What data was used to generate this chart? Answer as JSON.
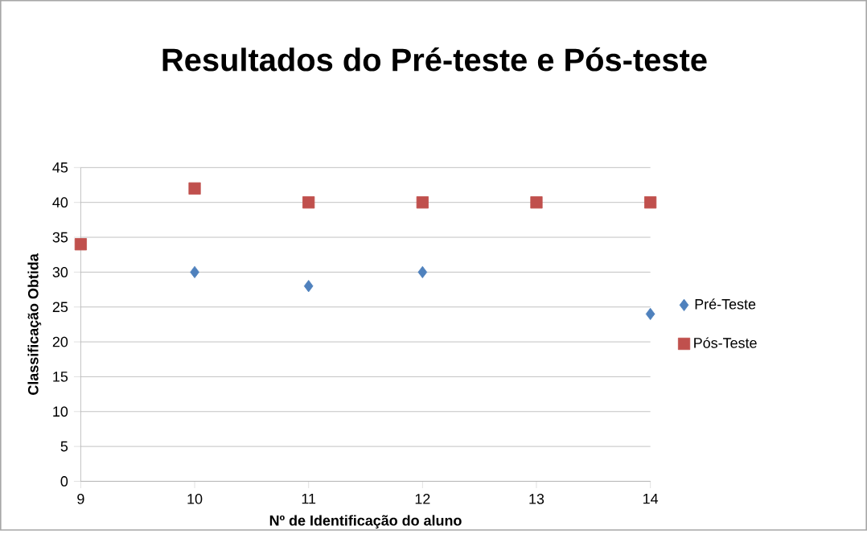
{
  "chart_data": {
    "type": "scatter",
    "title": "Resultados do Pré-teste e Pós-teste",
    "xlabel": "Nº de Identificação do aluno",
    "ylabel": "Classificação Obtida",
    "x": [
      9,
      10,
      11,
      12,
      13,
      14
    ],
    "series": [
      {
        "name": "Pré-Teste",
        "color": "#4f81bd",
        "marker": "diamond",
        "values": [
          null,
          30,
          28,
          30,
          null,
          24
        ]
      },
      {
        "name": "Pós-Teste",
        "color": "#c0504d",
        "marker": "square",
        "values": [
          34,
          42,
          40,
          40,
          40,
          40
        ]
      }
    ],
    "xlim": [
      9,
      14
    ],
    "xticks": [
      9,
      10,
      11,
      12,
      13,
      14
    ],
    "ylim": [
      0,
      45
    ],
    "yticks": [
      0,
      5,
      10,
      15,
      20,
      25,
      30,
      35,
      40,
      45
    ],
    "grid": "y",
    "legend": "right"
  }
}
